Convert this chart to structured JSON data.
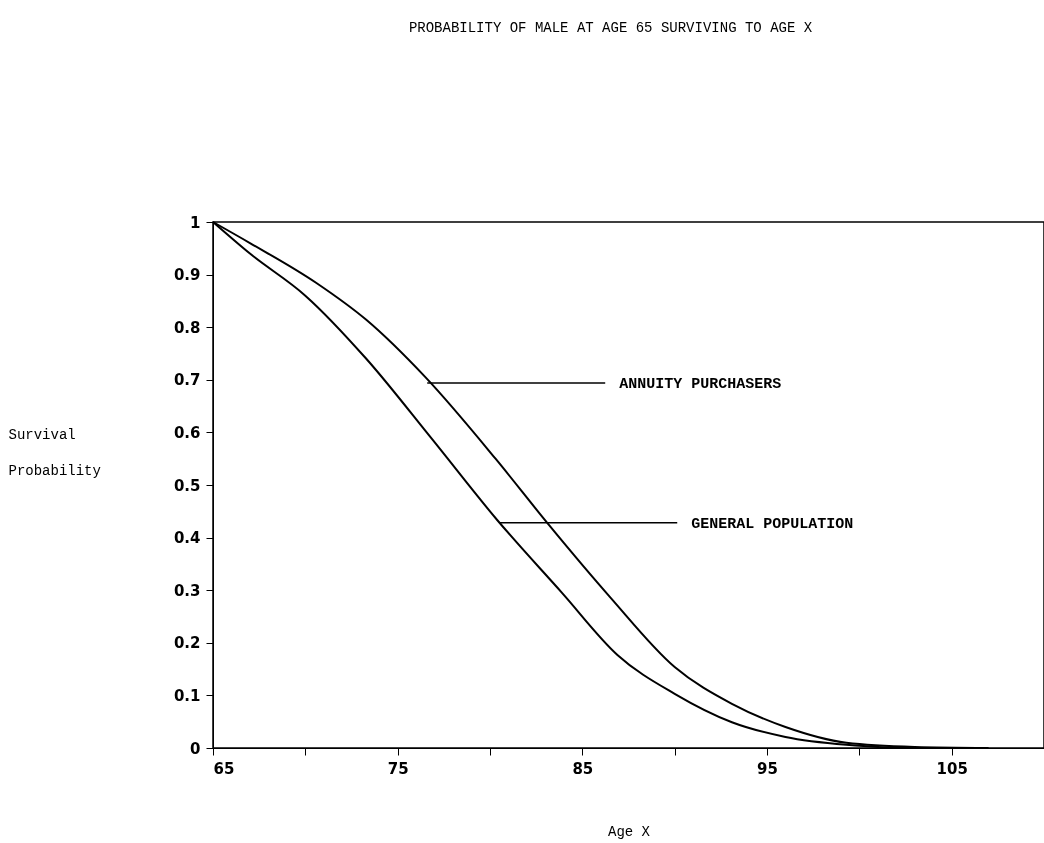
{
  "chart_data": {
    "type": "line",
    "title": "PROBABILITY OF MALE AT AGE 65 SURVIVING TO AGE X",
    "xlabel": "Age X",
    "ylabel": "Survival Probability",
    "series": [
      {
        "color": "#000000",
        "x": [
          65,
          67,
          70,
          73.3,
          76.8,
          80.4,
          83.9,
          86.9,
          90,
          93.1,
          96,
          99.3,
          101,
          104
        ],
        "values": [
          1,
          0.94,
          0.86,
          0.74,
          0.59,
          0.433,
          0.295,
          0.177,
          0.103,
          0.049,
          0.021,
          0.006,
          0.002,
          0
        ]
      },
      {
        "color": "#000000",
        "x": [
          65,
          67,
          70.6,
          73.3,
          76.5,
          80.3,
          83.1,
          86.5,
          90,
          93.1,
          96,
          99.3,
          103,
          107
        ],
        "values": [
          1,
          0.96,
          0.884,
          0.814,
          0.705,
          0.55,
          0.428,
          0.287,
          0.154,
          0.084,
          0.04,
          0.01,
          0.002,
          0
        ]
      }
    ],
    "annotations": [
      {
        "text": "ANNUITY PURCHASERS",
        "x": 76.6,
        "y": 0.694
      },
      {
        "text": "GENERAL POPULATION",
        "x": 80.5,
        "y": 0.428
      }
    ],
    "xlim": [
      65,
      110
    ],
    "xticks": [
      65,
      {
        "value": 70,
        "label": null
      },
      75,
      {
        "value": 80,
        "label": null
      },
      85,
      {
        "value": 90,
        "label": null
      },
      95,
      {
        "value": 100,
        "label": null
      },
      105
    ],
    "ylim": [
      0,
      1
    ],
    "yticks": [
      0,
      0.1,
      0.2,
      0.3,
      0.4,
      0.5,
      0.6,
      0.7,
      0.8,
      0.9,
      1
    ],
    "grid": false,
    "marker": "none",
    "line_style": "solid"
  }
}
